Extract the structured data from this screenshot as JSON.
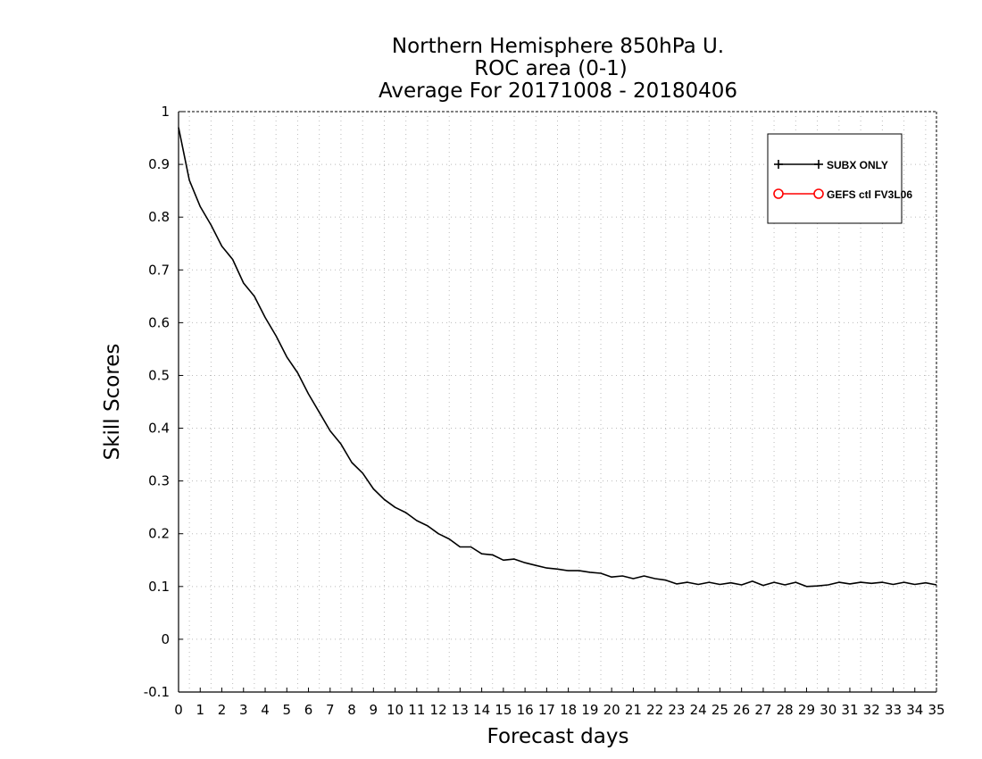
{
  "chart_data": {
    "type": "line",
    "title_lines": [
      "Northern Hemisphere 850hPa U.",
      "ROC area (0-1)",
      "Average For 20171008 - 20180406"
    ],
    "xlabel": "Forecast days",
    "ylabel": "Skill Scores",
    "xlim": [
      0,
      35
    ],
    "ylim": [
      -0.1,
      1
    ],
    "xticks": [
      0,
      1,
      2,
      3,
      4,
      5,
      6,
      7,
      8,
      9,
      10,
      11,
      12,
      13,
      14,
      15,
      16,
      17,
      18,
      19,
      20,
      21,
      22,
      23,
      24,
      25,
      26,
      27,
      28,
      29,
      30,
      31,
      32,
      33,
      34,
      35
    ],
    "yticks": [
      -0.1,
      0,
      0.1,
      0.2,
      0.3,
      0.4,
      0.5,
      0.6,
      0.7,
      0.8,
      0.9,
      1
    ],
    "ytick_labels": [
      "-0.1",
      "0",
      "0.1",
      "0.2",
      "0.3",
      "0.4",
      "0.5",
      "0.6",
      "0.7",
      "0.8",
      "0.9",
      "1"
    ],
    "grid": true,
    "legend_position": "top-right",
    "series": [
      {
        "name": "SUBX ONLY",
        "color": "#000000",
        "marker": "plus",
        "x": [
          0,
          0.5,
          1,
          1.5,
          2,
          2.5,
          3,
          3.5,
          4,
          4.5,
          5,
          5.5,
          6,
          6.5,
          7,
          7.5,
          8,
          8.5,
          9,
          9.5,
          10,
          10.5,
          11,
          11.5,
          12,
          12.5,
          13,
          13.5,
          14,
          14.5,
          15,
          15.5,
          16,
          16.5,
          17,
          17.5,
          18,
          18.5,
          19,
          19.5,
          20,
          20.5,
          21,
          21.5,
          22,
          22.5,
          23,
          23.5,
          24,
          24.5,
          25,
          25.5,
          26,
          26.5,
          27,
          27.5,
          28,
          28.5,
          29,
          29.5,
          30,
          30.5,
          31,
          31.5,
          32,
          32.5,
          33,
          33.5,
          34,
          34.5,
          35
        ],
        "y": [
          0.97,
          0.87,
          0.82,
          0.785,
          0.745,
          0.72,
          0.675,
          0.65,
          0.61,
          0.575,
          0.535,
          0.505,
          0.465,
          0.43,
          0.395,
          0.37,
          0.335,
          0.315,
          0.285,
          0.265,
          0.25,
          0.24,
          0.225,
          0.215,
          0.2,
          0.19,
          0.175,
          0.175,
          0.162,
          0.16,
          0.15,
          0.152,
          0.145,
          0.14,
          0.135,
          0.133,
          0.13,
          0.13,
          0.127,
          0.125,
          0.118,
          0.12,
          0.115,
          0.12,
          0.115,
          0.112,
          0.105,
          0.108,
          0.104,
          0.108,
          0.104,
          0.107,
          0.103,
          0.11,
          0.102,
          0.108,
          0.103,
          0.108,
          0.1,
          0.101,
          0.103,
          0.108,
          0.105,
          0.108,
          0.106,
          0.108,
          0.104,
          0.108,
          0.104,
          0.107,
          0.103
        ]
      },
      {
        "name": "GEFS ctl FV3L06",
        "color": "#ff0000",
        "marker": "circle",
        "x": [],
        "y": []
      }
    ]
  }
}
